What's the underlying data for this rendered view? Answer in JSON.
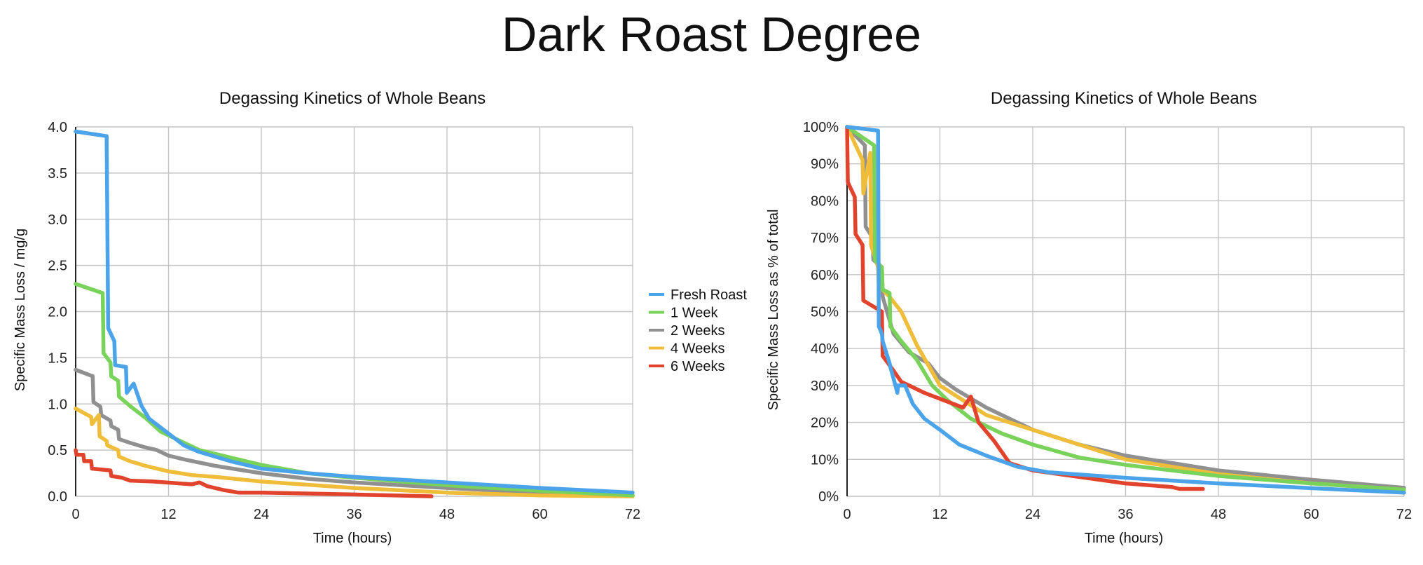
{
  "title": "Dark Roast Degree",
  "colors": {
    "Fresh Roast": "#4ba3ea",
    "1 Week": "#79d25a",
    "2 Weeks": "#909090",
    "4 Weeks": "#f0bd3a",
    "6 Weeks": "#e2432d"
  },
  "legend": {
    "entries": [
      "Fresh Roast",
      "1 Week",
      "2 Weeks",
      "4 Weeks",
      "6 Weeks"
    ],
    "placement": "between charts, right of left chart"
  },
  "chart_data": [
    {
      "type": "line",
      "title": "Degassing Kinetics of Whole Beans",
      "xlabel": "Time (hours)",
      "ylabel": "Specific Mass Loss / mg/g",
      "xlim": [
        0,
        72
      ],
      "ylim": [
        0,
        4
      ],
      "xticks": [
        "0",
        "12",
        "24",
        "36",
        "48",
        "60",
        "72"
      ],
      "yticks": [
        "0.0",
        "0.5",
        "1.0",
        "1.5",
        "2.0",
        "2.5",
        "3.0",
        "3.5",
        "4.0"
      ],
      "grid": true,
      "series": [
        {
          "name": "Fresh Roast",
          "x": [
            0,
            4,
            4.2,
            5,
            5.1,
            6.5,
            6.6,
            7.5,
            8.5,
            9.5,
            12,
            14,
            16,
            20,
            24,
            30,
            36,
            48,
            60,
            72
          ],
          "y": [
            3.95,
            3.9,
            1.82,
            1.68,
            1.42,
            1.4,
            1.12,
            1.22,
            0.98,
            0.84,
            0.68,
            0.55,
            0.48,
            0.38,
            0.3,
            0.25,
            0.21,
            0.15,
            0.09,
            0.04
          ]
        },
        {
          "name": "1 Week",
          "x": [
            0,
            3.5,
            3.6,
            4.5,
            4.6,
            5.5,
            5.6,
            7,
            9,
            11,
            13,
            16,
            20,
            24,
            30,
            36,
            48,
            60,
            72
          ],
          "y": [
            2.3,
            2.2,
            1.55,
            1.45,
            1.3,
            1.25,
            1.08,
            0.98,
            0.85,
            0.7,
            0.62,
            0.5,
            0.42,
            0.34,
            0.25,
            0.2,
            0.12,
            0.06,
            0.01
          ]
        },
        {
          "name": "2 Weeks",
          "x": [
            0,
            2.2,
            2.3,
            3.2,
            3.3,
            4.5,
            4.6,
            5.5,
            5.6,
            7,
            9,
            10.5,
            12,
            14,
            18,
            24,
            30,
            36,
            48,
            60,
            72
          ],
          "y": [
            1.37,
            1.3,
            1.02,
            0.97,
            0.88,
            0.82,
            0.76,
            0.72,
            0.62,
            0.58,
            0.53,
            0.5,
            0.44,
            0.4,
            0.33,
            0.25,
            0.19,
            0.15,
            0.09,
            0.04,
            0.01
          ]
        },
        {
          "name": "4 Weeks",
          "x": [
            0,
            2,
            2.1,
            3,
            3.1,
            4,
            4.1,
            5.5,
            5.6,
            7,
            9,
            12,
            15,
            18,
            24,
            36,
            48,
            60,
            72
          ],
          "y": [
            0.95,
            0.86,
            0.78,
            0.88,
            0.65,
            0.6,
            0.55,
            0.5,
            0.43,
            0.38,
            0.33,
            0.27,
            0.23,
            0.21,
            0.16,
            0.09,
            0.04,
            0.01,
            0.0
          ]
        },
        {
          "name": "6 Weeks",
          "x": [
            0,
            0.1,
            1,
            1.1,
            2,
            2.1,
            4.5,
            4.6,
            6,
            7,
            10,
            15,
            16,
            17,
            19,
            21,
            24,
            36,
            46
          ],
          "y": [
            0.5,
            0.45,
            0.45,
            0.38,
            0.38,
            0.3,
            0.28,
            0.22,
            0.2,
            0.17,
            0.16,
            0.13,
            0.15,
            0.11,
            0.07,
            0.04,
            0.04,
            0.02,
            0.0
          ]
        }
      ]
    },
    {
      "type": "line",
      "title": "Degassing Kinetics of Whole Beans",
      "xlabel": "Time (hours)",
      "ylabel": "Specific Mass Loss as % of total",
      "xlim": [
        0,
        72
      ],
      "ylim": [
        0,
        100
      ],
      "xticks": [
        "0",
        "12",
        "24",
        "36",
        "48",
        "60",
        "72"
      ],
      "yticks": [
        "0%",
        "10%",
        "20%",
        "30%",
        "40%",
        "50%",
        "60%",
        "70%",
        "80%",
        "90%",
        "100%"
      ],
      "grid": true,
      "series": [
        {
          "name": "Fresh Roast",
          "x": [
            0,
            4,
            4.1,
            4.5,
            4.6,
            5.5,
            5.6,
            6.5,
            6.6,
            7.5,
            8.5,
            10,
            12,
            14.5,
            18,
            22,
            26,
            36,
            48,
            60,
            72
          ],
          "y": [
            100,
            99,
            46,
            44,
            42,
            36,
            35,
            28,
            30,
            30,
            25,
            21,
            18,
            14,
            11,
            8,
            6.5,
            5,
            3.5,
            2.2,
            1.0
          ]
        },
        {
          "name": "1 Week",
          "x": [
            0,
            3.5,
            3.6,
            4.5,
            4.6,
            5.5,
            5.6,
            7,
            9,
            11,
            13,
            16,
            20,
            24,
            30,
            36,
            48,
            60,
            72
          ],
          "y": [
            100,
            95,
            64,
            62,
            56,
            55,
            46,
            42,
            37,
            30,
            26,
            21,
            17,
            14,
            10.5,
            8.5,
            5.5,
            3.5,
            1.8
          ]
        },
        {
          "name": "2 Weeks",
          "x": [
            0,
            2.3,
            2.4,
            3.3,
            3.4,
            4.5,
            4.6,
            6,
            8,
            10.5,
            12,
            14,
            18,
            24,
            30,
            36,
            48,
            60,
            72
          ],
          "y": [
            100,
            95,
            73,
            70,
            64,
            62,
            54,
            44,
            39,
            36,
            32,
            29,
            24,
            18,
            14,
            11,
            7,
            4.5,
            2.3
          ]
        },
        {
          "name": "4 Weeks",
          "x": [
            0,
            2,
            2.1,
            3,
            3.1,
            4,
            4.1,
            5.5,
            7,
            9,
            12,
            15,
            18,
            24,
            36,
            48,
            60,
            72
          ],
          "y": [
            100,
            91,
            82,
            93,
            68,
            62,
            57,
            54,
            50,
            41,
            30,
            26,
            22,
            18,
            10,
            6,
            3.5,
            1.8
          ]
        },
        {
          "name": "6 Weeks",
          "x": [
            0,
            0.1,
            1,
            1.1,
            2,
            2.1,
            4.5,
            4.6,
            6,
            7,
            10,
            15,
            16,
            17,
            19,
            21,
            24,
            36,
            42,
            43,
            46
          ],
          "y": [
            100,
            85,
            81,
            71,
            68,
            53,
            50,
            38,
            34,
            31,
            28,
            24,
            27,
            20,
            15,
            9,
            7,
            3.5,
            2.5,
            2,
            2
          ]
        }
      ]
    }
  ]
}
